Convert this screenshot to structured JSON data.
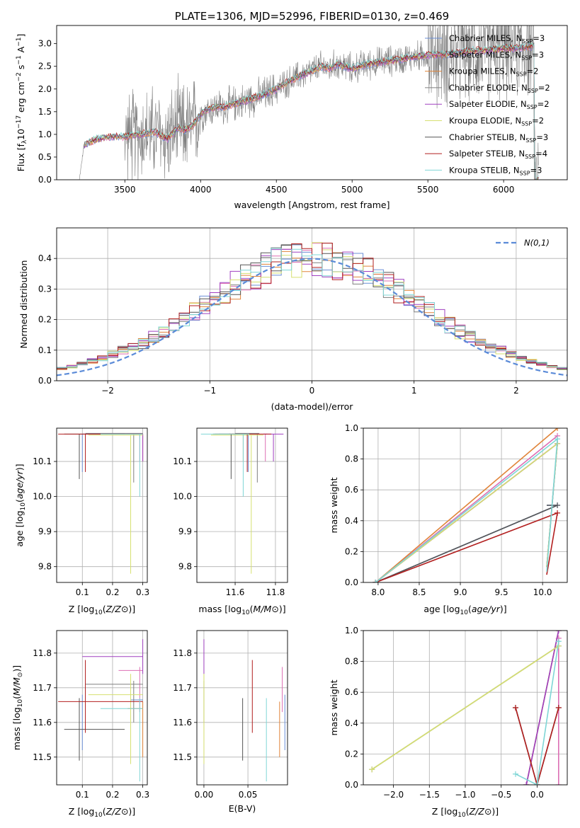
{
  "colors": {
    "chabrier_miles": "#6b8fd6",
    "salpeter_miles": "#dd6fb4",
    "kroupa_miles": "#e0843a",
    "chabrier_elodie": "#7f7f7f",
    "salpeter_elodie": "#a040c0",
    "kroupa_elodie": "#d6e070",
    "chabrier_stelib": "#555555",
    "salpeter_stelib": "#b21f1f",
    "kroupa_stelib": "#7fd6d6",
    "normal": "#5b8bd8"
  },
  "chart_data": [
    {
      "id": "spectrum",
      "type": "line",
      "title": "PLATE=1306, MJD=52996, FIBERID=0130, z=0.469",
      "xlabel": "wavelength [Angstrom, rest frame]",
      "ylabel": "Flux [f_λ10^-17 erg cm^-2 s^-1 A^-1]",
      "xlim": [
        3050,
        6420
      ],
      "ylim": [
        0,
        3.4
      ],
      "xticks": [
        "3500",
        "4000",
        "4500",
        "5000",
        "5500",
        "6000"
      ],
      "yticks": [
        "0.0",
        "0.5",
        "1.0",
        "1.5",
        "2.0",
        "2.5",
        "3.0"
      ],
      "grid": false,
      "legend_position": "top-right",
      "legend": [
        "Chabrier MILES, N_SSP=3",
        "Salpeter MILES, N_SSP=3",
        "Kroupa MILES, N_SSP=2",
        "Chabrier ELODIE, N_SSP=2",
        "Salpeter ELODIE, N_SSP=2",
        "Kroupa ELODIE, N_SSP=2",
        "Chabrier STELIB, N_SSP=3",
        "Salpeter STELIB, N_SSP=4",
        "Kroupa STELIB, N_SSP=3"
      ],
      "model_continuum": {
        "x": [
          3200,
          3230,
          3300,
          3400,
          3500,
          3600,
          3700,
          3780,
          3850,
          3900,
          3950,
          4000,
          4050,
          4100,
          4150,
          4200,
          4300,
          4400,
          4500,
          4600,
          4700,
          4800,
          4850,
          4900,
          5000,
          5100,
          5200,
          5300,
          5400,
          5500,
          5600,
          5700,
          5800,
          5900,
          6000,
          6100,
          6200
        ],
        "y": [
          0.0,
          0.75,
          0.88,
          0.95,
          0.95,
          1.0,
          1.05,
          0.9,
          1.15,
          1.1,
          1.2,
          1.45,
          1.55,
          1.6,
          1.6,
          1.65,
          1.75,
          1.85,
          2.0,
          2.2,
          2.35,
          2.5,
          2.45,
          2.55,
          2.45,
          2.55,
          2.6,
          2.65,
          2.7,
          2.75,
          2.75,
          2.8,
          2.85,
          2.85,
          2.9,
          2.9,
          2.95
        ]
      }
    },
    {
      "id": "residuals",
      "type": "histogram",
      "xlabel": "(data-model)/error",
      "ylabel": "Normed distribution",
      "xlim": [
        -2.5,
        2.5
      ],
      "ylim": [
        0,
        0.5
      ],
      "xticks": [
        "−2",
        "−1",
        "0",
        "1",
        "2"
      ],
      "yticks": [
        "0.0",
        "0.1",
        "0.2",
        "0.3",
        "0.4"
      ],
      "grid": true,
      "legend_position": "top-right",
      "legend": [
        "N(0,1)"
      ],
      "bin_width": 0.1
    },
    {
      "id": "age_vs_Z",
      "type": "errorbar",
      "xlabel": "Z [log10(Z/Z⊙)]",
      "ylabel": "age [log10(age/yr)]",
      "xlim": [
        0.015,
        0.315
      ],
      "ylim": [
        9.755,
        10.195
      ],
      "xticks": [
        "0.1",
        "0.2",
        "0.3"
      ],
      "yticks": [
        "9.8",
        "9.9",
        "10.0",
        "10.1"
      ],
      "grid": true
    },
    {
      "id": "age_vs_mass",
      "type": "errorbar",
      "xlabel": "mass [log10(M/M⊙)]",
      "ylabel": "",
      "xlim": [
        11.41,
        11.86
      ],
      "ylim": [
        9.755,
        10.195
      ],
      "xticks": [
        "11.6",
        "11.8"
      ],
      "yticks": [
        "9.8",
        "9.9",
        "10.0",
        "10.1"
      ],
      "grid": true
    },
    {
      "id": "weight_vs_age",
      "type": "line",
      "xlabel": "age [log10(age/yr)]",
      "ylabel": "mass weight",
      "xlim": [
        7.82,
        10.3
      ],
      "ylim": [
        0,
        1.0
      ],
      "xticks": [
        "8.0",
        "8.5",
        "9.0",
        "9.5",
        "10.0"
      ],
      "yticks": [
        "0.0",
        "0.2",
        "0.4",
        "0.6",
        "0.8",
        "1.0"
      ],
      "grid": true
    },
    {
      "id": "mass_vs_Z",
      "type": "errorbar",
      "xlabel": "Z [log10(Z/Z⊙)]",
      "ylabel": "mass [log10(M/M⊙)]",
      "xlim": [
        0.015,
        0.315
      ],
      "ylim": [
        11.42,
        11.865
      ],
      "xticks": [
        "0.1",
        "0.2",
        "0.3"
      ],
      "yticks": [
        "11.5",
        "11.6",
        "11.7",
        "11.8"
      ],
      "grid": true
    },
    {
      "id": "mass_vs_ebv",
      "type": "errorbar",
      "xlabel": "E(B-V)",
      "ylabel": "",
      "xlim": [
        -0.008,
        0.095
      ],
      "ylim": [
        11.42,
        11.865
      ],
      "xticks": [
        "0.00",
        "0.05"
      ],
      "yticks": [
        "11.5",
        "11.6",
        "11.7",
        "11.8"
      ],
      "grid": true
    },
    {
      "id": "weight_vs_Z",
      "type": "line",
      "xlabel": "Z [log10(Z/Z⊙)]",
      "ylabel": "mass weight",
      "xlim": [
        -2.42,
        0.42
      ],
      "ylim": [
        0,
        1.0
      ],
      "xticks": [
        "−2.0",
        "−1.5",
        "−1.0",
        "−0.5",
        "0.0"
      ],
      "yticks": [
        "0.0",
        "0.2",
        "0.4",
        "0.6",
        "0.8",
        "1.0"
      ],
      "grid": true
    }
  ],
  "fits": [
    {
      "key": "chabrier_miles",
      "age": [
        10.175,
        10.07,
        10.178
      ],
      "Z": [
        0.1,
        0.3,
        0.3
      ],
      "mass": [
        11.665,
        11.52,
        11.68
      ],
      "ebv": [
        0.092,
        0.0,
        0.0
      ],
      "zbar": [
        0.26,
        0.3
      ],
      "wZ": [
        0.5,
        0.5,
        0.5
      ],
      "wAge": [
        0.5,
        0.5,
        0.5
      ]
    },
    {
      "key": "salpeter_miles",
      "age": [
        10.17,
        10.1,
        10.178
      ],
      "Z": [
        0.29,
        0.25,
        0.3
      ],
      "mass": [
        11.75,
        11.63,
        11.76
      ],
      "ebv": [
        0.089,
        0.0,
        0.0
      ],
      "zbar": [
        0.22,
        0.3
      ],
      "wZ": [
        0.95,
        0.0,
        0.95
      ],
      "wAge": [
        0.95,
        0.0,
        0.95
      ]
    },
    {
      "key": "kroupa_miles",
      "age": [
        10.17,
        10.1,
        10.178
      ],
      "Z": [
        0.3,
        0.3,
        0.3
      ],
      "mass": [
        11.64,
        11.5,
        11.66
      ],
      "ebv": [
        0.086,
        0.0,
        0.0
      ],
      "zbar": [
        0.25,
        0.3
      ],
      "wZ": [
        1.0,
        0.0,
        0.0
      ],
      "wAge": [
        1.0,
        0.0,
        0.0
      ]
    },
    {
      "key": "chabrier_elodie",
      "age": [
        10.175,
        10.04,
        10.18
      ],
      "Z": [
        0.27,
        0.22,
        0.3
      ],
      "mass": [
        11.71,
        11.6,
        11.72
      ],
      "ebv": [
        0.0,
        0.0,
        0.0
      ],
      "zbar": [
        0.11,
        0.3
      ],
      "wZ": [
        0.9,
        0.1,
        0.9
      ],
      "wAge": [
        0.9,
        0.1,
        0.9
      ]
    },
    {
      "key": "salpeter_elodie",
      "age": [
        10.17,
        10.1,
        10.178
      ],
      "Z": [
        0.3,
        0.3,
        0.3
      ],
      "mass": [
        11.79,
        11.74,
        11.84
      ],
      "ebv": [
        0.0,
        0.0,
        0.0
      ],
      "zbar": [
        0.1,
        0.3
      ],
      "wZ": [
        0.9,
        0.1,
        0.9
      ],
      "wAge": [
        0.9,
        0.1,
        0.9
      ]
    },
    {
      "key": "kroupa_elodie",
      "age": [
        10.17,
        9.78,
        10.175
      ],
      "Z": [
        0.26,
        0.24,
        0.3
      ],
      "mass": [
        11.68,
        11.48,
        11.74
      ],
      "ebv": [
        0.0,
        0.0,
        0.0
      ],
      "zbar": [
        0.12,
        0.3
      ],
      "wZ": [
        0.9,
        0.1,
        0.9
      ],
      "wAge": [
        0.9,
        0.1,
        0.9
      ]
    },
    {
      "key": "chabrier_stelib",
      "age": [
        10.175,
        10.05,
        10.178
      ],
      "Z": [
        0.09,
        0.09,
        0.09
      ],
      "mass": [
        11.58,
        11.49,
        11.67
      ],
      "ebv": [
        0.044,
        0.0,
        0.0
      ],
      "zbar": [
        0.04,
        0.24
      ],
      "wZ": [
        0.5,
        0.5,
        0.5
      ],
      "wAge": [
        0.5,
        0.5,
        0.5
      ]
    },
    {
      "key": "salpeter_stelib",
      "age": [
        10.175,
        10.07,
        10.178
      ],
      "Z": [
        0.11,
        0.11,
        0.11
      ],
      "mass": [
        11.66,
        11.57,
        11.78
      ],
      "ebv": [
        0.055,
        0.0,
        0.0
      ],
      "zbar": [
        0.02,
        0.3
      ],
      "wZ": [
        0.45,
        0.05,
        0.5
      ],
      "wAge": [
        0.45,
        0.05,
        0.5
      ]
    },
    {
      "key": "kroupa_stelib",
      "age": [
        10.17,
        10.0,
        10.178
      ],
      "Z": [
        0.29,
        0.29,
        0.3
      ],
      "mass": [
        11.64,
        11.43,
        11.67
      ],
      "ebv": [
        0.071,
        0.0,
        0.0
      ],
      "zbar": [
        0.16,
        0.3
      ],
      "wZ": [
        0.93,
        0.07,
        0.0
      ],
      "wAge": [
        0.93,
        0.07,
        0.0
      ]
    }
  ]
}
